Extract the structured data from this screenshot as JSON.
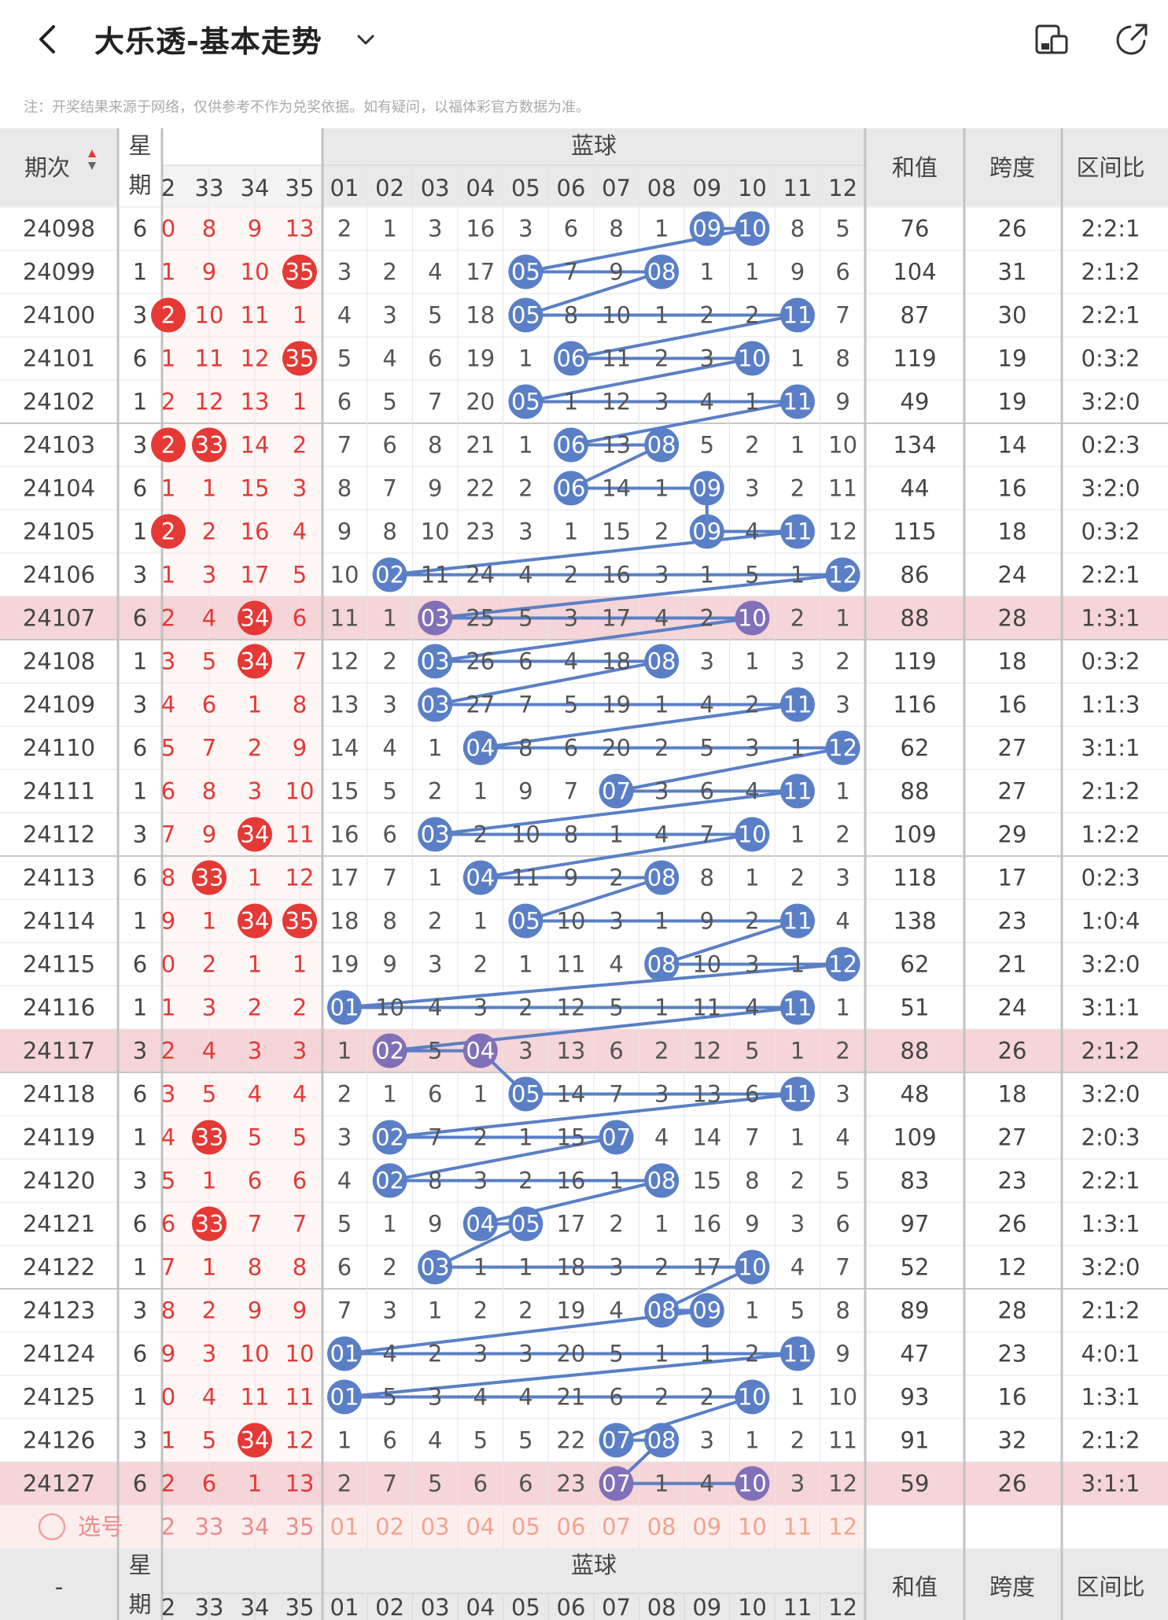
{
  "header": {
    "title": "大乐透-基本走势",
    "icons": [
      "back-icon",
      "chevron-down-icon",
      "layout-toggle-icon",
      "share-icon"
    ]
  },
  "notice": "注：开奖结果来源于网络，仅供参考不作为兑奖依据。如有疑问，以福体彩官方数据为准。",
  "table": {
    "col_period": "期次",
    "col_week": "星期",
    "col_blue_group": "蓝球",
    "col_sum": "和值",
    "col_span": "跨度",
    "col_ratio": "区间比",
    "footer_dash": "-",
    "red_partial_header": "2",
    "red_headers": [
      "33",
      "34",
      "35"
    ],
    "blue_headers": [
      "01",
      "02",
      "03",
      "04",
      "05",
      "06",
      "07",
      "08",
      "09",
      "10",
      "11",
      "12"
    ],
    "select_label": "选号",
    "colors": {
      "red": "#e53935",
      "blue": "#5a7fc6",
      "purple": "#8070b8",
      "highlight": "#f5d5d8"
    },
    "rows": [
      {
        "p": "24098",
        "w": "6",
        "r": [
          "0",
          "8",
          "9",
          "13"
        ],
        "rh": [],
        "b": [
          "2",
          "1",
          "3",
          "16",
          "3",
          "6",
          "8",
          "1",
          "09",
          "10",
          "8",
          "5"
        ],
        "bh": [
          8,
          9
        ],
        "sum": "76",
        "span": "26",
        "ratio": "2:2:1"
      },
      {
        "p": "24099",
        "w": "1",
        "r": [
          "1",
          "9",
          "10",
          "35"
        ],
        "rh": [
          3
        ],
        "b": [
          "3",
          "2",
          "4",
          "17",
          "05",
          "7",
          "9",
          "08",
          "1",
          "1",
          "9",
          "6"
        ],
        "bh": [
          4,
          7
        ],
        "sum": "104",
        "span": "31",
        "ratio": "2:1:2"
      },
      {
        "p": "24100",
        "w": "3",
        "r": [
          "2",
          "10",
          "11",
          "1"
        ],
        "rh": [
          0
        ],
        "b": [
          "4",
          "3",
          "5",
          "18",
          "05",
          "8",
          "10",
          "1",
          "2",
          "2",
          "11",
          "7"
        ],
        "bh": [
          4,
          10
        ],
        "sum": "87",
        "span": "30",
        "ratio": "2:2:1"
      },
      {
        "p": "24101",
        "w": "6",
        "r": [
          "1",
          "11",
          "12",
          "35"
        ],
        "rh": [
          3
        ],
        "b": [
          "5",
          "4",
          "6",
          "19",
          "1",
          "06",
          "11",
          "2",
          "3",
          "10",
          "1",
          "8"
        ],
        "bh": [
          5,
          9
        ],
        "sum": "119",
        "span": "19",
        "ratio": "0:3:2"
      },
      {
        "p": "24102",
        "w": "1",
        "r": [
          "2",
          "12",
          "13",
          "1"
        ],
        "rh": [],
        "b": [
          "6",
          "5",
          "7",
          "20",
          "05",
          "1",
          "12",
          "3",
          "4",
          "1",
          "11",
          "9"
        ],
        "bh": [
          4,
          10
        ],
        "sum": "49",
        "span": "19",
        "ratio": "3:2:0"
      },
      {
        "p": "24103",
        "w": "3",
        "r": [
          "2",
          "33",
          "14",
          "2"
        ],
        "rh": [
          0,
          1
        ],
        "b": [
          "7",
          "6",
          "8",
          "21",
          "1",
          "06",
          "13",
          "08",
          "5",
          "2",
          "1",
          "10"
        ],
        "bh": [
          5,
          7
        ],
        "sum": "134",
        "span": "14",
        "ratio": "0:2:3"
      },
      {
        "p": "24104",
        "w": "6",
        "r": [
          "1",
          "1",
          "15",
          "3"
        ],
        "rh": [],
        "b": [
          "8",
          "7",
          "9",
          "22",
          "2",
          "06",
          "14",
          "1",
          "09",
          "3",
          "2",
          "11"
        ],
        "bh": [
          5,
          8
        ],
        "sum": "44",
        "span": "16",
        "ratio": "3:2:0"
      },
      {
        "p": "24105",
        "w": "1",
        "r": [
          "2",
          "2",
          "16",
          "4"
        ],
        "rh": [
          0
        ],
        "b": [
          "9",
          "8",
          "10",
          "23",
          "3",
          "1",
          "15",
          "2",
          "09",
          "4",
          "11",
          "12"
        ],
        "bh": [
          8,
          10
        ],
        "sum": "115",
        "span": "18",
        "ratio": "0:3:2"
      },
      {
        "p": "24106",
        "w": "3",
        "r": [
          "1",
          "3",
          "17",
          "5"
        ],
        "rh": [],
        "b": [
          "10",
          "02",
          "11",
          "24",
          "4",
          "2",
          "16",
          "3",
          "1",
          "5",
          "1",
          "12"
        ],
        "bh": [
          1,
          11
        ],
        "sum": "86",
        "span": "24",
        "ratio": "2:2:1"
      },
      {
        "p": "24107",
        "w": "6",
        "r": [
          "2",
          "4",
          "34",
          "6"
        ],
        "rh": [
          2
        ],
        "b": [
          "11",
          "1",
          "03",
          "25",
          "5",
          "3",
          "17",
          "4",
          "2",
          "10",
          "2",
          "1"
        ],
        "bh": [
          2,
          9
        ],
        "sum": "88",
        "span": "28",
        "ratio": "1:3:1",
        "hl": true
      },
      {
        "p": "24108",
        "w": "1",
        "r": [
          "3",
          "5",
          "34",
          "7"
        ],
        "rh": [
          2
        ],
        "b": [
          "12",
          "2",
          "03",
          "26",
          "6",
          "4",
          "18",
          "08",
          "3",
          "1",
          "3",
          "2"
        ],
        "bh": [
          2,
          7
        ],
        "sum": "119",
        "span": "18",
        "ratio": "0:3:2"
      },
      {
        "p": "24109",
        "w": "3",
        "r": [
          "4",
          "6",
          "1",
          "8"
        ],
        "rh": [],
        "b": [
          "13",
          "3",
          "03",
          "27",
          "7",
          "5",
          "19",
          "1",
          "4",
          "2",
          "11",
          "3"
        ],
        "bh": [
          2,
          10
        ],
        "sum": "116",
        "span": "16",
        "ratio": "1:1:3"
      },
      {
        "p": "24110",
        "w": "6",
        "r": [
          "5",
          "7",
          "2",
          "9"
        ],
        "rh": [],
        "b": [
          "14",
          "4",
          "1",
          "04",
          "8",
          "6",
          "20",
          "2",
          "5",
          "3",
          "1",
          "12"
        ],
        "bh": [
          3,
          11
        ],
        "sum": "62",
        "span": "27",
        "ratio": "3:1:1"
      },
      {
        "p": "24111",
        "w": "1",
        "r": [
          "6",
          "8",
          "3",
          "10"
        ],
        "rh": [],
        "b": [
          "15",
          "5",
          "2",
          "1",
          "9",
          "7",
          "07",
          "3",
          "6",
          "4",
          "11",
          "1"
        ],
        "bh": [
          6,
          10
        ],
        "sum": "88",
        "span": "27",
        "ratio": "2:1:2"
      },
      {
        "p": "24112",
        "w": "3",
        "r": [
          "7",
          "9",
          "34",
          "11"
        ],
        "rh": [
          2
        ],
        "b": [
          "16",
          "6",
          "03",
          "2",
          "10",
          "8",
          "1",
          "4",
          "7",
          "10",
          "1",
          "2"
        ],
        "bh": [
          2,
          9
        ],
        "sum": "109",
        "span": "29",
        "ratio": "1:2:2"
      },
      {
        "p": "24113",
        "w": "6",
        "r": [
          "8",
          "33",
          "1",
          "12"
        ],
        "rh": [
          1
        ],
        "b": [
          "17",
          "7",
          "1",
          "04",
          "11",
          "9",
          "2",
          "08",
          "8",
          "1",
          "2",
          "3"
        ],
        "bh": [
          3,
          7
        ],
        "sum": "118",
        "span": "17",
        "ratio": "0:2:3"
      },
      {
        "p": "24114",
        "w": "1",
        "r": [
          "9",
          "1",
          "34",
          "35"
        ],
        "rh": [
          2,
          3
        ],
        "b": [
          "18",
          "8",
          "2",
          "1",
          "05",
          "10",
          "3",
          "1",
          "9",
          "2",
          "11",
          "4"
        ],
        "bh": [
          4,
          10
        ],
        "sum": "138",
        "span": "23",
        "ratio": "1:0:4"
      },
      {
        "p": "24115",
        "w": "6",
        "r": [
          "0",
          "2",
          "1",
          "1"
        ],
        "rh": [],
        "b": [
          "19",
          "9",
          "3",
          "2",
          "1",
          "11",
          "4",
          "08",
          "10",
          "3",
          "1",
          "12"
        ],
        "bh": [
          7,
          11
        ],
        "sum": "62",
        "span": "21",
        "ratio": "3:2:0"
      },
      {
        "p": "24116",
        "w": "1",
        "r": [
          "1",
          "3",
          "2",
          "2"
        ],
        "rh": [],
        "b": [
          "01",
          "10",
          "4",
          "3",
          "2",
          "12",
          "5",
          "1",
          "11",
          "4",
          "11",
          "1"
        ],
        "bh": [
          0,
          10
        ],
        "sum": "51",
        "span": "24",
        "ratio": "3:1:1"
      },
      {
        "p": "24117",
        "w": "3",
        "r": [
          "2",
          "4",
          "3",
          "3"
        ],
        "rh": [],
        "b": [
          "1",
          "02",
          "5",
          "04",
          "3",
          "13",
          "6",
          "2",
          "12",
          "5",
          "1",
          "2"
        ],
        "bh": [
          1,
          3
        ],
        "sum": "88",
        "span": "26",
        "ratio": "2:1:2",
        "hl": true
      },
      {
        "p": "24118",
        "w": "6",
        "r": [
          "3",
          "5",
          "4",
          "4"
        ],
        "rh": [],
        "b": [
          "2",
          "1",
          "6",
          "1",
          "05",
          "14",
          "7",
          "3",
          "13",
          "6",
          "11",
          "3"
        ],
        "bh": [
          4,
          10
        ],
        "sum": "48",
        "span": "18",
        "ratio": "3:2:0"
      },
      {
        "p": "24119",
        "w": "1",
        "r": [
          "4",
          "33",
          "5",
          "5"
        ],
        "rh": [
          1
        ],
        "b": [
          "3",
          "02",
          "7",
          "2",
          "1",
          "15",
          "07",
          "4",
          "14",
          "7",
          "1",
          "4"
        ],
        "bh": [
          1,
          6
        ],
        "sum": "109",
        "span": "27",
        "ratio": "2:0:3"
      },
      {
        "p": "24120",
        "w": "3",
        "r": [
          "5",
          "1",
          "6",
          "6"
        ],
        "rh": [],
        "b": [
          "4",
          "02",
          "8",
          "3",
          "2",
          "16",
          "1",
          "08",
          "15",
          "8",
          "2",
          "5"
        ],
        "bh": [
          1,
          7
        ],
        "sum": "83",
        "span": "23",
        "ratio": "2:2:1"
      },
      {
        "p": "24121",
        "w": "6",
        "r": [
          "6",
          "33",
          "7",
          "7"
        ],
        "rh": [
          1
        ],
        "b": [
          "5",
          "1",
          "9",
          "04",
          "05",
          "17",
          "2",
          "1",
          "16",
          "9",
          "3",
          "6"
        ],
        "bh": [
          3,
          4
        ],
        "sum": "97",
        "span": "26",
        "ratio": "1:3:1"
      },
      {
        "p": "24122",
        "w": "1",
        "r": [
          "7",
          "1",
          "8",
          "8"
        ],
        "rh": [],
        "b": [
          "6",
          "2",
          "03",
          "1",
          "1",
          "18",
          "3",
          "2",
          "17",
          "10",
          "4",
          "7"
        ],
        "bh": [
          2,
          9
        ],
        "sum": "52",
        "span": "12",
        "ratio": "3:2:0"
      },
      {
        "p": "24123",
        "w": "3",
        "r": [
          "8",
          "2",
          "9",
          "9"
        ],
        "rh": [],
        "b": [
          "7",
          "3",
          "1",
          "2",
          "2",
          "19",
          "4",
          "08",
          "09",
          "1",
          "5",
          "8"
        ],
        "bh": [
          7,
          8
        ],
        "sum": "89",
        "span": "28",
        "ratio": "2:1:2"
      },
      {
        "p": "24124",
        "w": "6",
        "r": [
          "9",
          "3",
          "10",
          "10"
        ],
        "rh": [],
        "b": [
          "01",
          "4",
          "2",
          "3",
          "3",
          "20",
          "5",
          "1",
          "1",
          "2",
          "11",
          "9"
        ],
        "bh": [
          0,
          10
        ],
        "sum": "47",
        "span": "23",
        "ratio": "4:0:1"
      },
      {
        "p": "24125",
        "w": "1",
        "r": [
          "0",
          "4",
          "11",
          "11"
        ],
        "rh": [],
        "b": [
          "01",
          "5",
          "3",
          "4",
          "4",
          "21",
          "6",
          "2",
          "2",
          "10",
          "1",
          "10"
        ],
        "bh": [
          0,
          9
        ],
        "sum": "93",
        "span": "16",
        "ratio": "1:3:1"
      },
      {
        "p": "24126",
        "w": "3",
        "r": [
          "1",
          "5",
          "34",
          "12"
        ],
        "rh": [
          2
        ],
        "b": [
          "1",
          "6",
          "4",
          "5",
          "5",
          "22",
          "07",
          "08",
          "3",
          "1",
          "2",
          "11"
        ],
        "bh": [
          6,
          7
        ],
        "sum": "91",
        "span": "32",
        "ratio": "2:1:2"
      },
      {
        "p": "24127",
        "w": "6",
        "r": [
          "2",
          "6",
          "1",
          "13"
        ],
        "rh": [],
        "b": [
          "2",
          "7",
          "5",
          "6",
          "6",
          "23",
          "07",
          "1",
          "4",
          "10",
          "3",
          "12"
        ],
        "bh": [
          6,
          9
        ],
        "sum": "59",
        "span": "26",
        "ratio": "3:1:1",
        "hl": true
      }
    ]
  }
}
